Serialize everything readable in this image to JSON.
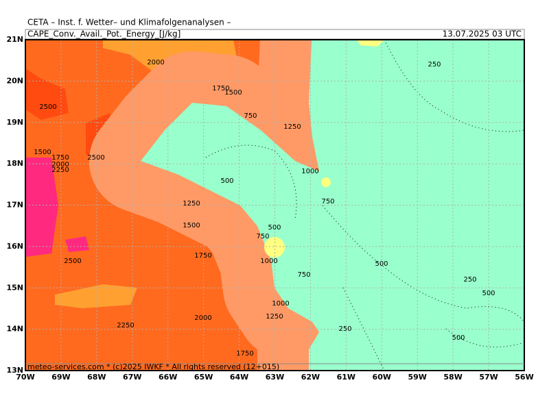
{
  "header": {
    "title": "CETA – Inst. f. Wetter– und Klimafolgenanalysen –",
    "field": "CAPE_Conv._Avail._Pot._Energy_[J/kg]",
    "time": "13.07.2025 03 UTC"
  },
  "axes": {
    "lat": [
      "21N",
      "20N",
      "19N",
      "18N",
      "17N",
      "16N",
      "15N",
      "14N",
      "13N"
    ],
    "lon": [
      "70W",
      "69W",
      "68W",
      "67W",
      "66W",
      "65W",
      "64W",
      "63W",
      "62W",
      "61W",
      "60W",
      "59W",
      "58W",
      "57W",
      "56W"
    ]
  },
  "contour_labels": [
    "2000",
    "2500",
    "1750",
    "1500",
    "750",
    "1250",
    "250",
    "1500",
    "1750",
    "2000",
    "2250",
    "2500",
    "1000",
    "500",
    "750",
    "1250",
    "1500",
    "500",
    "750",
    "2500",
    "1750",
    "1000",
    "500",
    "750",
    "250",
    "500",
    "1000",
    "2250",
    "2000",
    "1250",
    "250",
    "500",
    "1750"
  ],
  "footer": "meteo-services.com * (c)2025 IWKF * All rights reserved (12+015)"
}
